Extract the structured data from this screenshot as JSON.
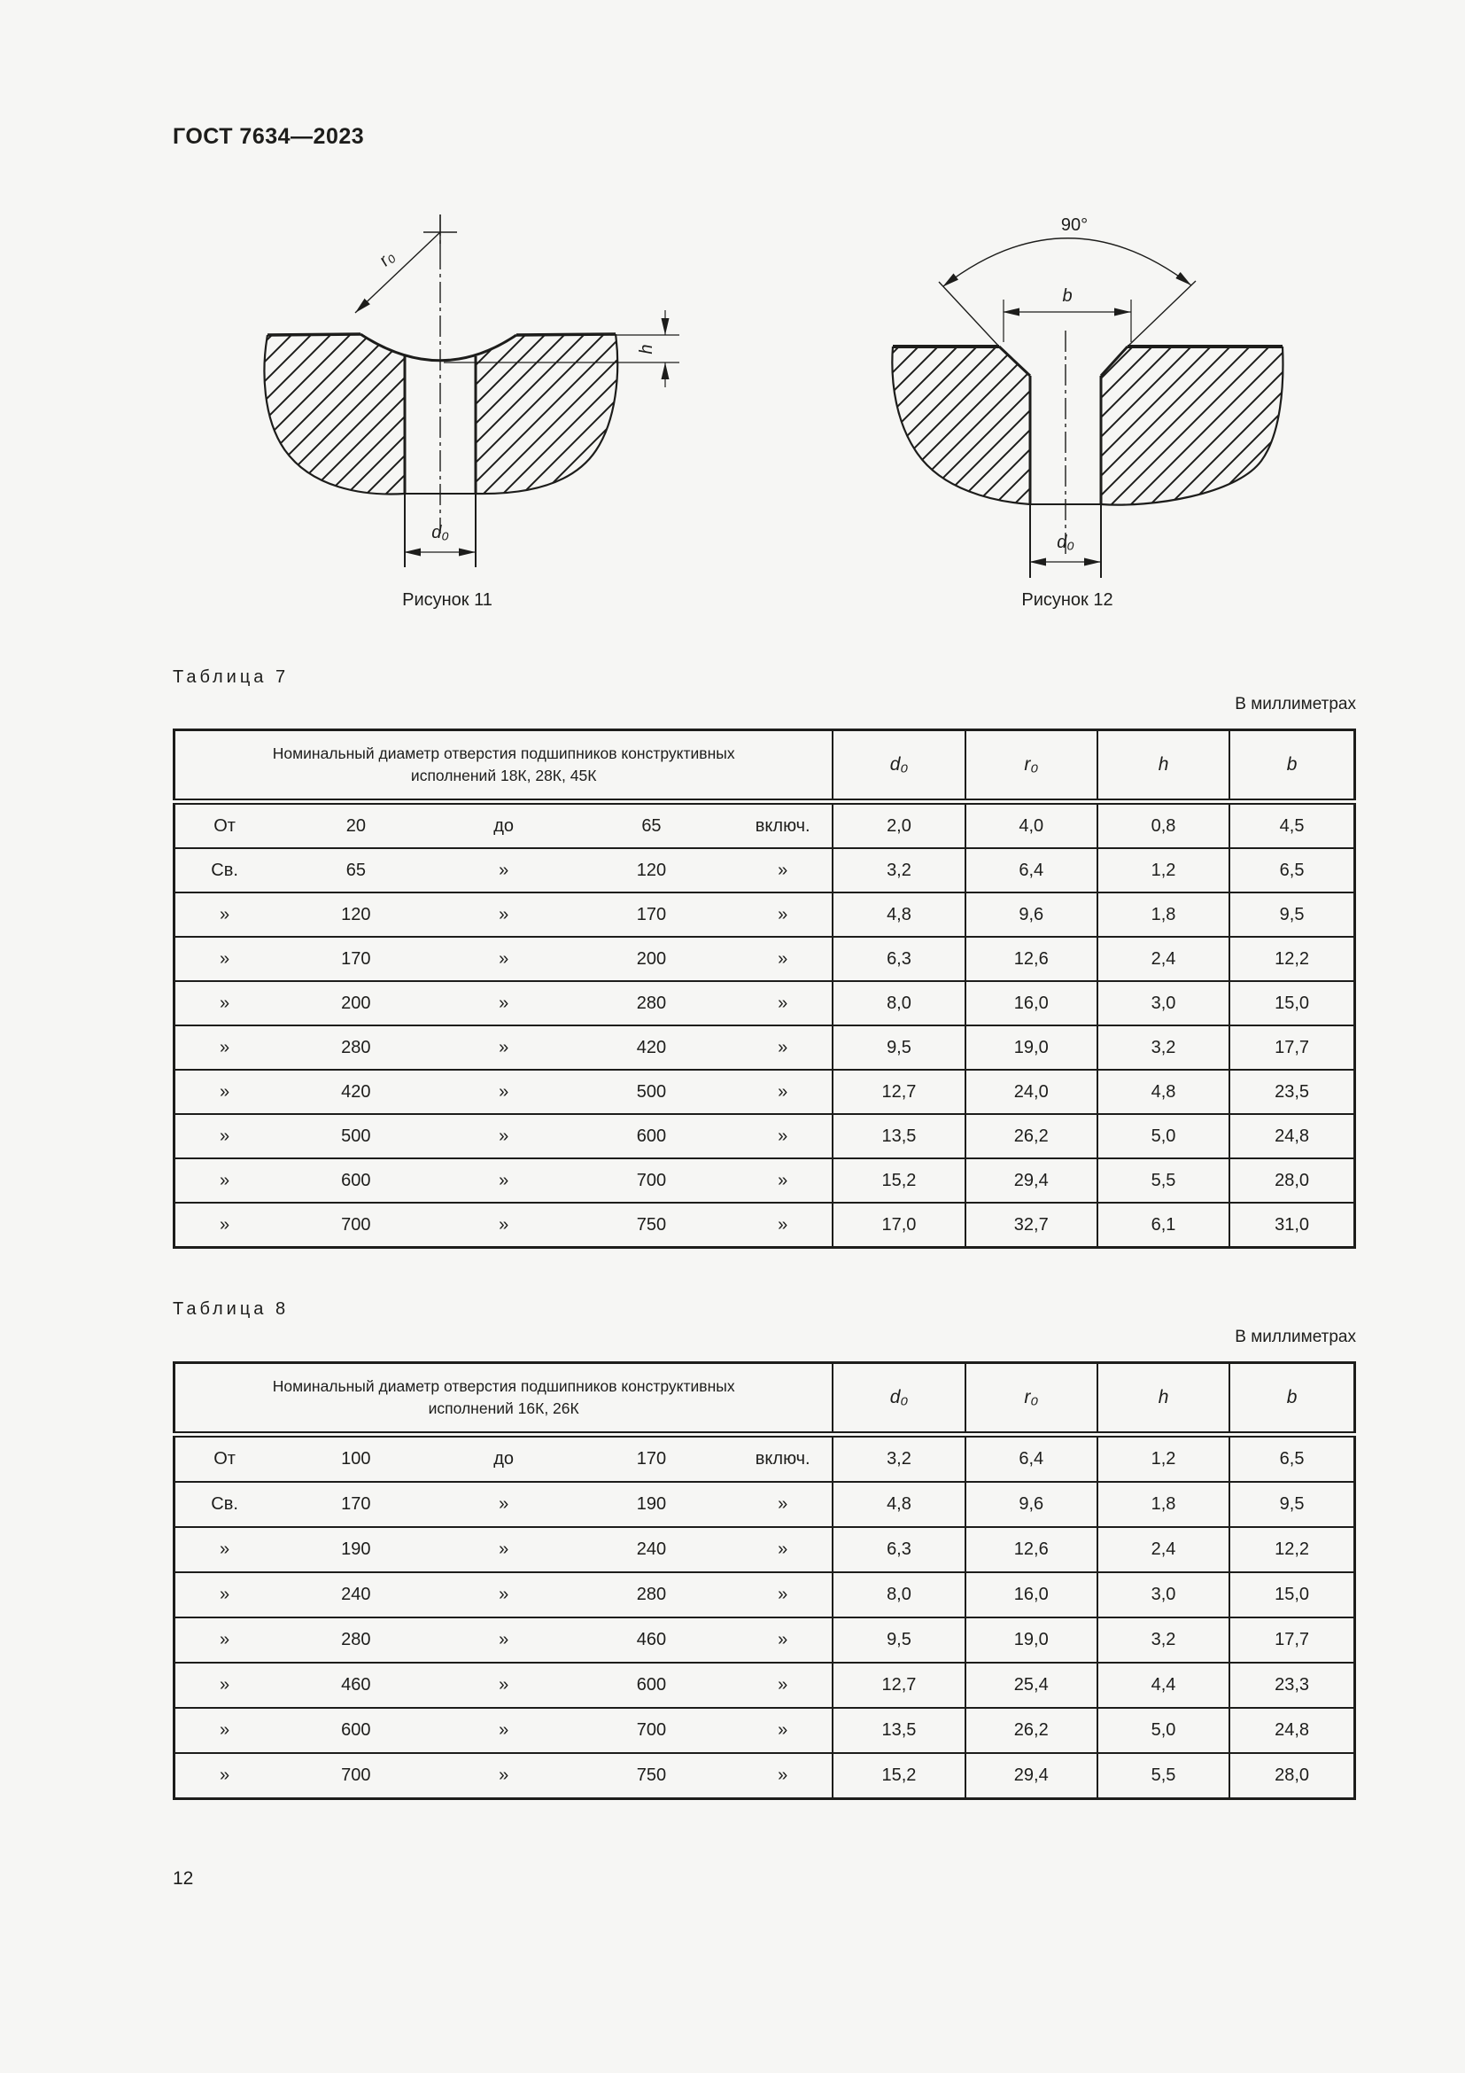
{
  "page": {
    "code": "ГОСТ 7634—2023",
    "number": "12"
  },
  "figures": {
    "fig11": {
      "caption": "Рисунок 11",
      "r0": "r₀",
      "h": "h",
      "d0": "d₀"
    },
    "fig12": {
      "caption": "Рисунок 12",
      "angle": "90°",
      "b": "b",
      "d0": "d₀"
    }
  },
  "tables": [
    {
      "title": "Таблица 7",
      "units": "В миллиметрах",
      "header_lines": [
        "Номинальный диаметр отверстия подшипников конструктивных",
        "исполнений 18К, 28К, 45К"
      ],
      "cols": [
        "d₀",
        "r₀",
        "h",
        "b"
      ],
      "rows": [
        {
          "range": [
            "От",
            "20",
            "до",
            "65",
            "включ."
          ],
          "values": [
            "2,0",
            "4,0",
            "0,8",
            "4,5"
          ]
        },
        {
          "range": [
            "Св.",
            "65",
            "»",
            "120",
            "»"
          ],
          "values": [
            "3,2",
            "6,4",
            "1,2",
            "6,5"
          ]
        },
        {
          "range": [
            "»",
            "120",
            "»",
            "170",
            "»"
          ],
          "values": [
            "4,8",
            "9,6",
            "1,8",
            "9,5"
          ]
        },
        {
          "range": [
            "»",
            "170",
            "»",
            "200",
            "»"
          ],
          "values": [
            "6,3",
            "12,6",
            "2,4",
            "12,2"
          ]
        },
        {
          "range": [
            "»",
            "200",
            "»",
            "280",
            "»"
          ],
          "values": [
            "8,0",
            "16,0",
            "3,0",
            "15,0"
          ]
        },
        {
          "range": [
            "»",
            "280",
            "»",
            "420",
            "»"
          ],
          "values": [
            "9,5",
            "19,0",
            "3,2",
            "17,7"
          ]
        },
        {
          "range": [
            "»",
            "420",
            "»",
            "500",
            "»"
          ],
          "values": [
            "12,7",
            "24,0",
            "4,8",
            "23,5"
          ]
        },
        {
          "range": [
            "»",
            "500",
            "»",
            "600",
            "»"
          ],
          "values": [
            "13,5",
            "26,2",
            "5,0",
            "24,8"
          ]
        },
        {
          "range": [
            "»",
            "600",
            "»",
            "700",
            "»"
          ],
          "values": [
            "15,2",
            "29,4",
            "5,5",
            "28,0"
          ]
        },
        {
          "range": [
            "»",
            "700",
            "»",
            "750",
            "»"
          ],
          "values": [
            "17,0",
            "32,7",
            "6,1",
            "31,0"
          ]
        }
      ]
    },
    {
      "title": "Таблица 8",
      "units": "В миллиметрах",
      "header_lines": [
        "Номинальный диаметр отверстия подшипников конструктивных",
        "исполнений 16К, 26К"
      ],
      "cols": [
        "d₀",
        "r₀",
        "h",
        "b"
      ],
      "rows": [
        {
          "range": [
            "От",
            "100",
            "до",
            "170",
            "включ."
          ],
          "values": [
            "3,2",
            "6,4",
            "1,2",
            "6,5"
          ]
        },
        {
          "range": [
            "Св.",
            "170",
            "»",
            "190",
            "»"
          ],
          "values": [
            "4,8",
            "9,6",
            "1,8",
            "9,5"
          ]
        },
        {
          "range": [
            "»",
            "190",
            "»",
            "240",
            "»"
          ],
          "values": [
            "6,3",
            "12,6",
            "2,4",
            "12,2"
          ]
        },
        {
          "range": [
            "»",
            "240",
            "»",
            "280",
            "»"
          ],
          "values": [
            "8,0",
            "16,0",
            "3,0",
            "15,0"
          ]
        },
        {
          "range": [
            "»",
            "280",
            "»",
            "460",
            "»"
          ],
          "values": [
            "9,5",
            "19,0",
            "3,2",
            "17,7"
          ]
        },
        {
          "range": [
            "»",
            "460",
            "»",
            "600",
            "»"
          ],
          "values": [
            "12,7",
            "25,4",
            "4,4",
            "23,3"
          ]
        },
        {
          "range": [
            "»",
            "600",
            "»",
            "700",
            "»"
          ],
          "values": [
            "13,5",
            "26,2",
            "5,0",
            "24,8"
          ]
        },
        {
          "range": [
            "»",
            "700",
            "»",
            "750",
            "»"
          ],
          "values": [
            "15,2",
            "29,4",
            "5,5",
            "28,0"
          ]
        }
      ]
    }
  ]
}
